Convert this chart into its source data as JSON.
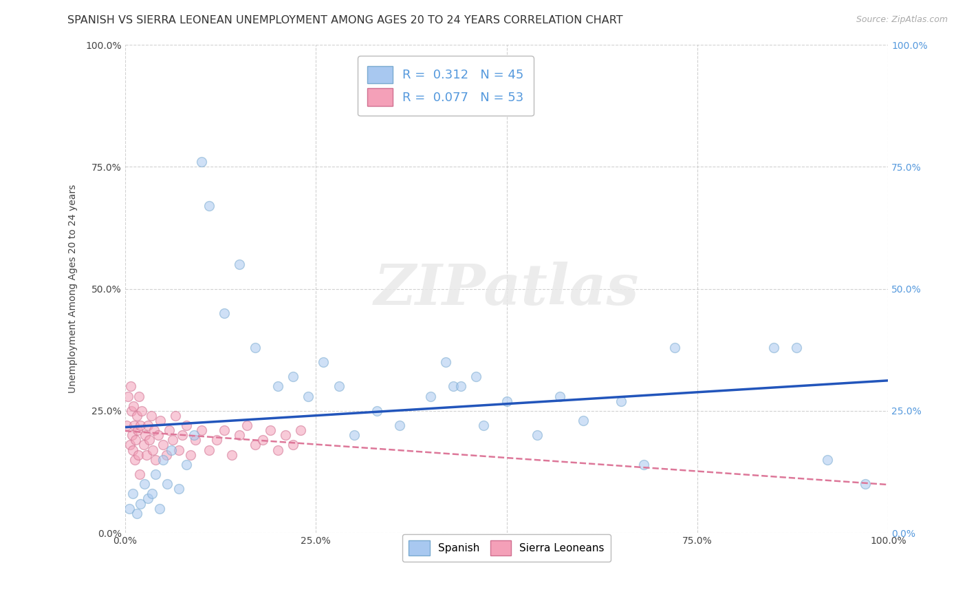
{
  "title": "SPANISH VS SIERRA LEONEAN UNEMPLOYMENT AMONG AGES 20 TO 24 YEARS CORRELATION CHART",
  "source": "Source: ZipAtlas.com",
  "ylabel": "Unemployment Among Ages 20 to 24 years",
  "xlim": [
    0.0,
    1.0
  ],
  "ylim": [
    0.0,
    1.0
  ],
  "xticks": [
    0.0,
    0.25,
    0.5,
    0.75,
    1.0
  ],
  "yticks": [
    0.0,
    0.25,
    0.5,
    0.75,
    1.0
  ],
  "xtick_labels": [
    "0.0%",
    "25.0%",
    "50.0%",
    "75.0%",
    "100.0%"
  ],
  "ytick_labels": [
    "0.0%",
    "25.0%",
    "50.0%",
    "75.0%",
    "100.0%"
  ],
  "right_ytick_labels": [
    "0.0%",
    "25.0%",
    "50.0%",
    "75.0%",
    "100.0%"
  ],
  "background_color": "#ffffff",
  "watermark_text": "ZIPatlas",
  "spanish_color": "#a8c8f0",
  "spanish_edge_color": "#7aaad0",
  "sierra_color": "#f4a0b8",
  "sierra_edge_color": "#d07090",
  "spanish_R": 0.312,
  "spanish_N": 45,
  "sierra_R": 0.077,
  "sierra_N": 53,
  "spanish_line_color": "#2255bb",
  "sierra_line_color": "#dd7799",
  "right_axis_color": "#5599dd",
  "spanish_x": [
    0.005,
    0.01,
    0.015,
    0.02,
    0.025,
    0.03,
    0.035,
    0.04,
    0.045,
    0.05,
    0.055,
    0.06,
    0.07,
    0.08,
    0.09,
    0.1,
    0.11,
    0.13,
    0.15,
    0.17,
    0.2,
    0.22,
    0.24,
    0.26,
    0.28,
    0.3,
    0.33,
    0.36,
    0.4,
    0.43,
    0.47,
    0.5,
    0.54,
    0.57,
    0.6,
    0.42,
    0.44,
    0.46,
    0.65,
    0.68,
    0.72,
    0.85,
    0.88,
    0.92,
    0.97
  ],
  "spanish_y": [
    0.05,
    0.08,
    0.04,
    0.06,
    0.1,
    0.07,
    0.08,
    0.12,
    0.05,
    0.15,
    0.1,
    0.17,
    0.09,
    0.14,
    0.2,
    0.76,
    0.67,
    0.45,
    0.55,
    0.38,
    0.3,
    0.32,
    0.28,
    0.35,
    0.3,
    0.2,
    0.25,
    0.22,
    0.28,
    0.3,
    0.22,
    0.27,
    0.2,
    0.28,
    0.23,
    0.35,
    0.3,
    0.32,
    0.27,
    0.14,
    0.38,
    0.38,
    0.38,
    0.15,
    0.1
  ],
  "sierra_x": [
    0.002,
    0.004,
    0.006,
    0.007,
    0.008,
    0.009,
    0.01,
    0.011,
    0.012,
    0.013,
    0.014,
    0.015,
    0.016,
    0.017,
    0.018,
    0.019,
    0.02,
    0.022,
    0.024,
    0.026,
    0.028,
    0.03,
    0.032,
    0.034,
    0.036,
    0.038,
    0.04,
    0.043,
    0.046,
    0.05,
    0.054,
    0.058,
    0.062,
    0.066,
    0.07,
    0.075,
    0.08,
    0.086,
    0.092,
    0.1,
    0.11,
    0.12,
    0.13,
    0.14,
    0.15,
    0.16,
    0.17,
    0.18,
    0.19,
    0.2,
    0.21,
    0.22,
    0.23
  ],
  "sierra_y": [
    0.22,
    0.28,
    0.18,
    0.3,
    0.25,
    0.2,
    0.17,
    0.26,
    0.22,
    0.15,
    0.19,
    0.24,
    0.21,
    0.16,
    0.28,
    0.12,
    0.22,
    0.25,
    0.18,
    0.2,
    0.16,
    0.22,
    0.19,
    0.24,
    0.17,
    0.21,
    0.15,
    0.2,
    0.23,
    0.18,
    0.16,
    0.21,
    0.19,
    0.24,
    0.17,
    0.2,
    0.22,
    0.16,
    0.19,
    0.21,
    0.17,
    0.19,
    0.21,
    0.16,
    0.2,
    0.22,
    0.18,
    0.19,
    0.21,
    0.17,
    0.2,
    0.18,
    0.21
  ],
  "marker_size": 100,
  "alpha": 0.55,
  "grid_color": "#cccccc",
  "title_fontsize": 11.5,
  "axis_label_fontsize": 10,
  "tick_fontsize": 10,
  "legend_fontsize": 13
}
